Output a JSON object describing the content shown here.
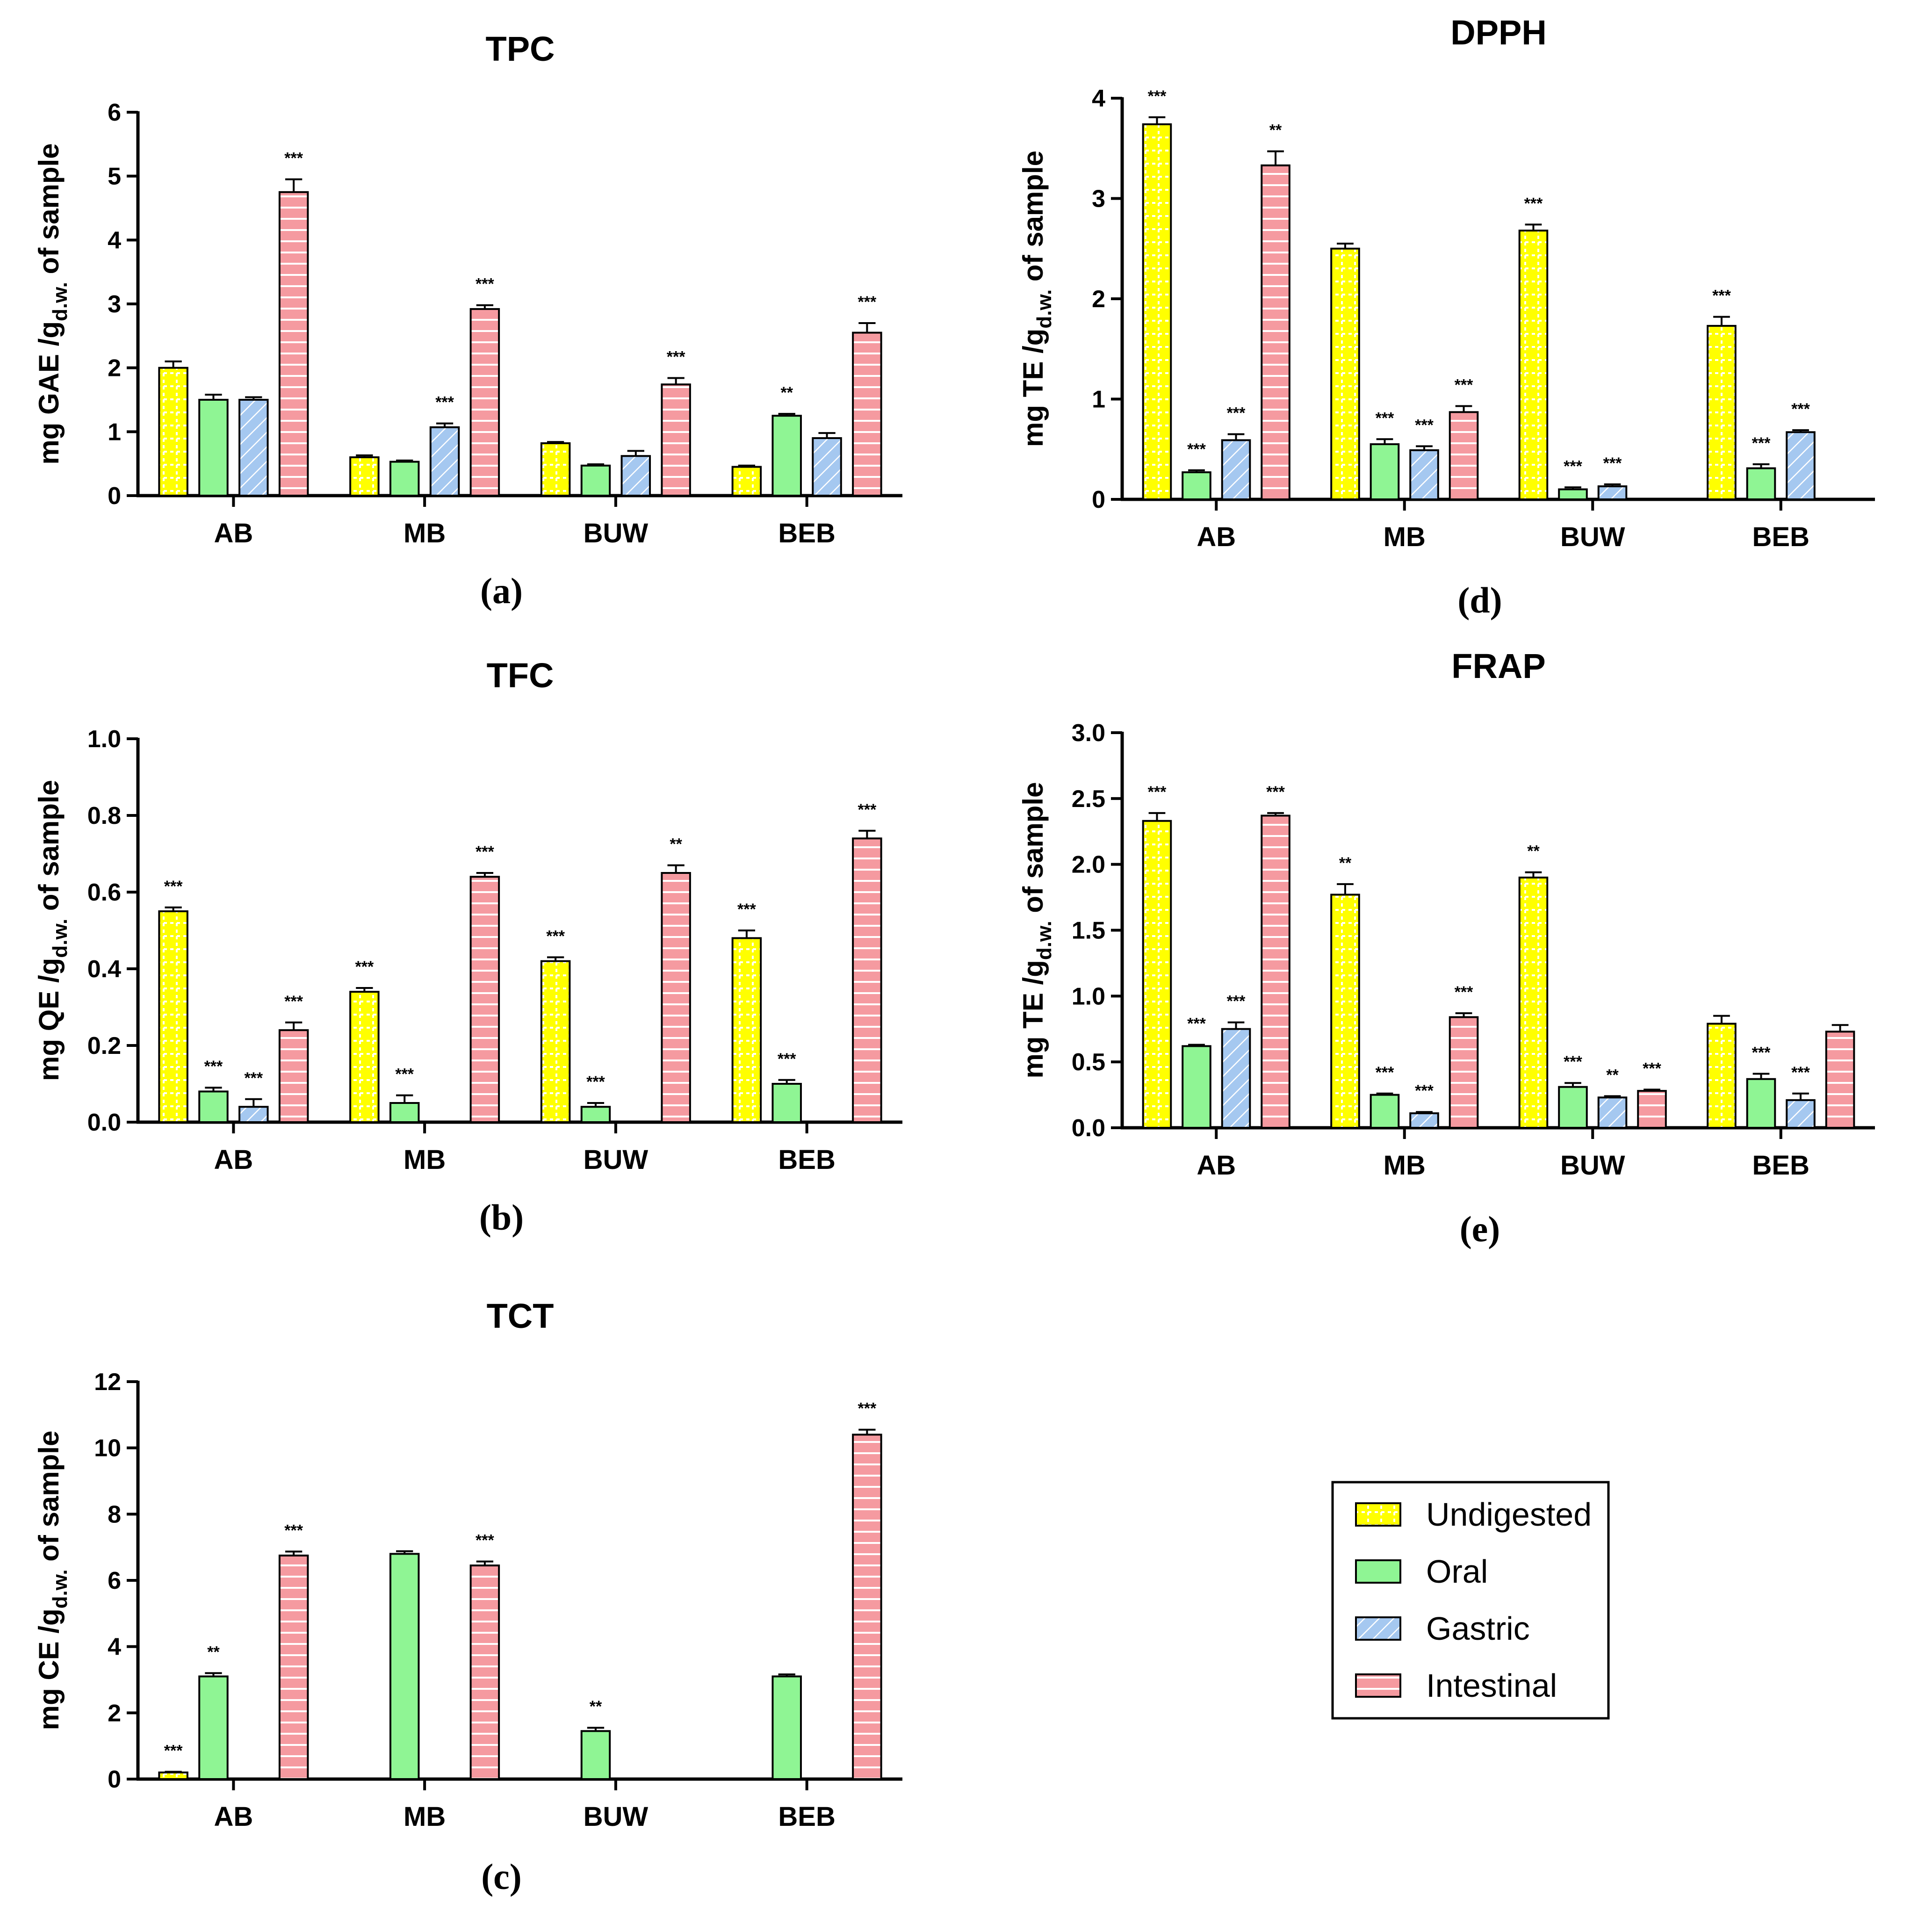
{
  "figure": {
    "categories": [
      "AB",
      "MB",
      "BUW",
      "BEB"
    ],
    "legend": {
      "items": [
        {
          "key": "undigested",
          "label": "Undigested"
        },
        {
          "key": "oral",
          "label": "Oral"
        },
        {
          "key": "gastric",
          "label": "Gastric"
        },
        {
          "key": "intestinal",
          "label": "Intestinal"
        }
      ]
    },
    "colors": {
      "undigested": "#ffff00",
      "oral": "#8ff594",
      "gastric": "#a5c8f0",
      "intestinal": "#f59aa0",
      "axis": "#000000"
    }
  },
  "chart_data": [
    {
      "id": "tpc",
      "panel_label": "(a)",
      "type": "bar",
      "title": "TPC",
      "ylabel_main": "mg GAE /g",
      "ylabel_sub": "d.w.",
      "ylabel_tail": " of sample",
      "ylim": [
        0,
        6
      ],
      "yticks": [
        0,
        1,
        2,
        3,
        4,
        5,
        6
      ],
      "ytick_labels": [
        "0",
        "1",
        "2",
        "3",
        "4",
        "5",
        "6"
      ],
      "categories": [
        "AB",
        "MB",
        "BUW",
        "BEB"
      ],
      "series": [
        {
          "name": "Undigested",
          "values": [
            2.0,
            0.6,
            0.82,
            0.45
          ],
          "errors": [
            0.1,
            0.03,
            0.02,
            0.02
          ],
          "sig": [
            "",
            "",
            "",
            ""
          ]
        },
        {
          "name": "Oral",
          "values": [
            1.5,
            0.53,
            0.47,
            1.25
          ],
          "errors": [
            0.08,
            0.02,
            0.02,
            0.03
          ],
          "sig": [
            "",
            "",
            "",
            "**"
          ]
        },
        {
          "name": "Gastric",
          "values": [
            1.5,
            1.07,
            0.62,
            0.9
          ],
          "errors": [
            0.04,
            0.06,
            0.08,
            0.08
          ],
          "sig": [
            "",
            "***",
            "",
            ""
          ]
        },
        {
          "name": "Intestinal",
          "values": [
            4.75,
            2.92,
            1.74,
            2.55
          ],
          "errors": [
            0.2,
            0.06,
            0.1,
            0.15
          ],
          "sig": [
            "***",
            "***",
            "***",
            "***"
          ]
        }
      ]
    },
    {
      "id": "tfc",
      "panel_label": "(b)",
      "type": "bar",
      "title": "TFC",
      "ylabel_main": "mg QE /g",
      "ylabel_sub": "d.w.",
      "ylabel_tail": " of sample",
      "ylim": [
        0,
        1.0
      ],
      "yticks": [
        0,
        0.2,
        0.4,
        0.6,
        0.8,
        1.0
      ],
      "ytick_labels": [
        "0.0",
        "0.2",
        "0.4",
        "0.6",
        "0.8",
        "1.0"
      ],
      "categories": [
        "AB",
        "MB",
        "BUW",
        "BEB"
      ],
      "series": [
        {
          "name": "Undigested",
          "values": [
            0.55,
            0.34,
            0.42,
            0.48
          ],
          "errors": [
            0.01,
            0.01,
            0.01,
            0.02
          ],
          "sig": [
            "***",
            "***",
            "***",
            "***"
          ]
        },
        {
          "name": "Oral",
          "values": [
            0.08,
            0.05,
            0.04,
            0.1
          ],
          "errors": [
            0.01,
            0.02,
            0.01,
            0.01
          ],
          "sig": [
            "***",
            "***",
            "***",
            "***"
          ]
        },
        {
          "name": "Gastric",
          "values": [
            0.04,
            0,
            0,
            0
          ],
          "errors": [
            0.02,
            0,
            0,
            0
          ],
          "sig": [
            "***",
            "",
            "",
            ""
          ]
        },
        {
          "name": "Intestinal",
          "values": [
            0.24,
            0.64,
            0.65,
            0.74
          ],
          "errors": [
            0.02,
            0.01,
            0.02,
            0.02
          ],
          "sig": [
            "***",
            "***",
            "**",
            "***"
          ]
        }
      ]
    },
    {
      "id": "tct",
      "panel_label": "(c)",
      "type": "bar",
      "title": "TCT",
      "ylabel_main": "mg CE /g",
      "ylabel_sub": "d.w.",
      "ylabel_tail": " of sample",
      "ylim": [
        0,
        12
      ],
      "yticks": [
        0,
        2,
        4,
        6,
        8,
        10,
        12
      ],
      "ytick_labels": [
        "0",
        "2",
        "4",
        "6",
        "8",
        "10",
        "12"
      ],
      "categories": [
        "AB",
        "MB",
        "BUW",
        "BEB"
      ],
      "series": [
        {
          "name": "Undigested",
          "values": [
            0.2,
            0,
            0,
            0
          ],
          "errors": [
            0.02,
            0,
            0,
            0
          ],
          "sig": [
            "***",
            "",
            "",
            ""
          ]
        },
        {
          "name": "Oral",
          "values": [
            3.1,
            6.8,
            1.45,
            3.1
          ],
          "errors": [
            0.1,
            0.08,
            0.1,
            0.06
          ],
          "sig": [
            "**",
            "",
            "**",
            ""
          ]
        },
        {
          "name": "Gastric",
          "values": [
            0,
            0,
            0,
            0
          ],
          "errors": [
            0,
            0,
            0,
            0
          ],
          "sig": [
            "",
            "",
            "",
            ""
          ]
        },
        {
          "name": "Intestinal",
          "values": [
            6.75,
            6.45,
            0,
            10.4
          ],
          "errors": [
            0.12,
            0.12,
            0,
            0.15
          ],
          "sig": [
            "***",
            "***",
            "",
            "***"
          ]
        }
      ]
    },
    {
      "id": "dpph",
      "panel_label": "(d)",
      "type": "bar",
      "title": "DPPH",
      "ylabel_main": "mg TE /g",
      "ylabel_sub": "d.w.",
      "ylabel_tail": " of sample",
      "ylim": [
        0,
        4
      ],
      "yticks": [
        0,
        1,
        2,
        3,
        4
      ],
      "ytick_labels": [
        "0",
        "1",
        "2",
        "3",
        "4"
      ],
      "categories": [
        "AB",
        "MB",
        "BUW",
        "BEB"
      ],
      "series": [
        {
          "name": "Undigested",
          "values": [
            3.74,
            2.5,
            2.68,
            1.73
          ],
          "errors": [
            0.07,
            0.05,
            0.06,
            0.09
          ],
          "sig": [
            "***",
            "",
            "***",
            "***"
          ]
        },
        {
          "name": "Oral",
          "values": [
            0.27,
            0.55,
            0.1,
            0.31
          ],
          "errors": [
            0.02,
            0.05,
            0.02,
            0.04
          ],
          "sig": [
            "***",
            "***",
            "***",
            "***"
          ]
        },
        {
          "name": "Gastric",
          "values": [
            0.59,
            0.49,
            0.13,
            0.67
          ],
          "errors": [
            0.06,
            0.04,
            0.02,
            0.02
          ],
          "sig": [
            "***",
            "***",
            "***",
            "***"
          ]
        },
        {
          "name": "Intestinal",
          "values": [
            3.33,
            0.87,
            0,
            0
          ],
          "errors": [
            0.14,
            0.06,
            0,
            0
          ],
          "sig": [
            "**",
            "***",
            "",
            ""
          ]
        }
      ]
    },
    {
      "id": "frap",
      "panel_label": "(e)",
      "type": "bar",
      "title": "FRAP",
      "ylabel_main": "mg TE /g",
      "ylabel_sub": "d.w.",
      "ylabel_tail": " of sample",
      "ylim": [
        0,
        3.0
      ],
      "yticks": [
        0,
        0.5,
        1.0,
        1.5,
        2.0,
        2.5,
        3.0
      ],
      "ytick_labels": [
        "0.0",
        "0.5",
        "1.0",
        "1.5",
        "2.0",
        "2.5",
        "3.0"
      ],
      "categories": [
        "AB",
        "MB",
        "BUW",
        "BEB"
      ],
      "series": [
        {
          "name": "Undigested",
          "values": [
            2.33,
            1.77,
            1.9,
            0.79
          ],
          "errors": [
            0.06,
            0.08,
            0.04,
            0.06
          ],
          "sig": [
            "***",
            "**",
            "**",
            ""
          ]
        },
        {
          "name": "Oral",
          "values": [
            0.62,
            0.25,
            0.31,
            0.37
          ],
          "errors": [
            0.01,
            0.01,
            0.03,
            0.04
          ],
          "sig": [
            "***",
            "***",
            "***",
            "***"
          ]
        },
        {
          "name": "Gastric",
          "values": [
            0.75,
            0.11,
            0.23,
            0.21
          ],
          "errors": [
            0.05,
            0.01,
            0.01,
            0.05
          ],
          "sig": [
            "***",
            "***",
            "**",
            "***"
          ]
        },
        {
          "name": "Intestinal",
          "values": [
            2.37,
            0.84,
            0.28,
            0.73
          ],
          "errors": [
            0.02,
            0.03,
            0.01,
            0.05
          ],
          "sig": [
            "***",
            "***",
            "***",
            ""
          ]
        }
      ]
    }
  ]
}
